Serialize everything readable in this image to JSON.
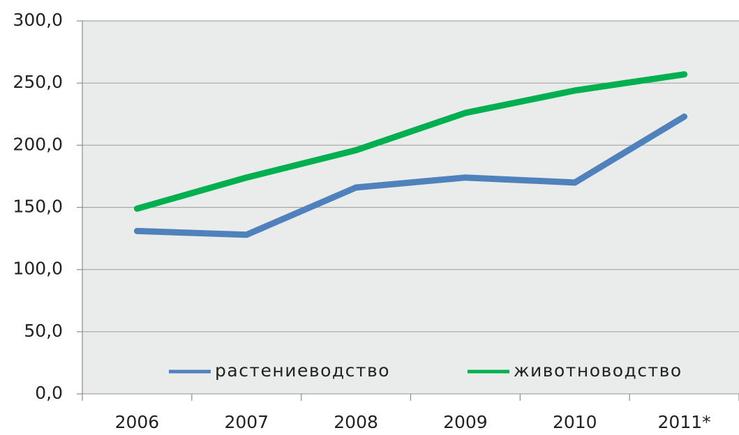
{
  "chart_data": {
    "type": "line",
    "categories": [
      "2006",
      "2007",
      "2008",
      "2009",
      "2010",
      "2011*"
    ],
    "series": [
      {
        "name": "растениеводство",
        "color": "#4f81bd",
        "values": [
          131,
          128,
          166,
          174,
          170,
          223
        ]
      },
      {
        "name": "животноводство",
        "color": "#00b050",
        "values": [
          149,
          174,
          196,
          226,
          244,
          257
        ]
      }
    ],
    "ylim": [
      0,
      300
    ],
    "yticks": [
      {
        "value": 0,
        "label": "0,0"
      },
      {
        "value": 50,
        "label": "50,0"
      },
      {
        "value": 100,
        "label": "100,0"
      },
      {
        "value": 150,
        "label": "150,0"
      },
      {
        "value": 200,
        "label": "200,0"
      },
      {
        "value": 250,
        "label": "250,0"
      },
      {
        "value": 300,
        "label": "300,0"
      }
    ],
    "grid": true,
    "legend": "bottom"
  }
}
